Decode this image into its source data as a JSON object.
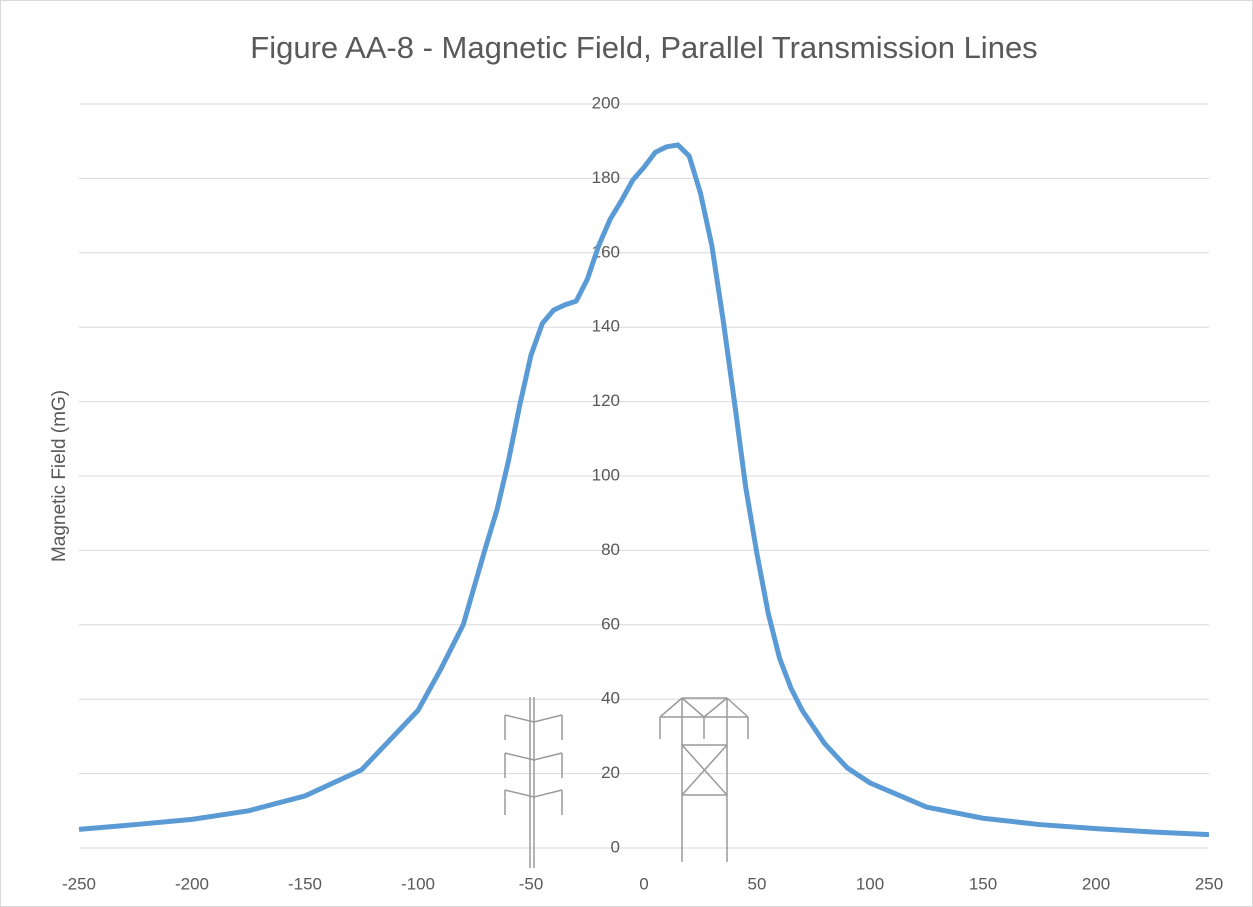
{
  "chart_data": {
    "type": "line",
    "title": "Figure AA-8 - Magnetic Field, Parallel Transmission Lines",
    "y_label": "Magnetic  Field (mG)",
    "x": [
      -250,
      -225,
      -200,
      -175,
      -150,
      -125,
      -100,
      -90,
      -80,
      -70,
      -65,
      -60,
      -55,
      -50,
      -45,
      -40,
      -35,
      -30,
      -25,
      -20,
      -15,
      -10,
      -5,
      0,
      5,
      10,
      15,
      20,
      25,
      30,
      35,
      40,
      45,
      50,
      55,
      60,
      65,
      70,
      80,
      90,
      100,
      125,
      150,
      175,
      200,
      225,
      250
    ],
    "series": [
      {
        "color": "#5b9bd5",
        "values": [
          5,
          6.3,
          7.7,
          10,
          14,
          21,
          37,
          48,
          60,
          81,
          91,
          104,
          119,
          132.5,
          141,
          144.6,
          146,
          147,
          153,
          162,
          169,
          174,
          179.5,
          183,
          187,
          188.5,
          189,
          186,
          176,
          162,
          142,
          120,
          97,
          79,
          63,
          51,
          43,
          37,
          28,
          21.5,
          17.5,
          11,
          8,
          6.3,
          5.2,
          4.3,
          3.6
        ]
      }
    ],
    "xlim": [
      -250,
      250
    ],
    "xticks": [
      -250,
      -200,
      -150,
      -100,
      -50,
      0,
      50,
      100,
      150,
      200,
      250
    ],
    "ylim": [
      0,
      200
    ],
    "yticks": [
      0,
      20,
      40,
      60,
      80,
      100,
      120,
      140,
      160,
      180,
      200
    ],
    "grid": true
  }
}
